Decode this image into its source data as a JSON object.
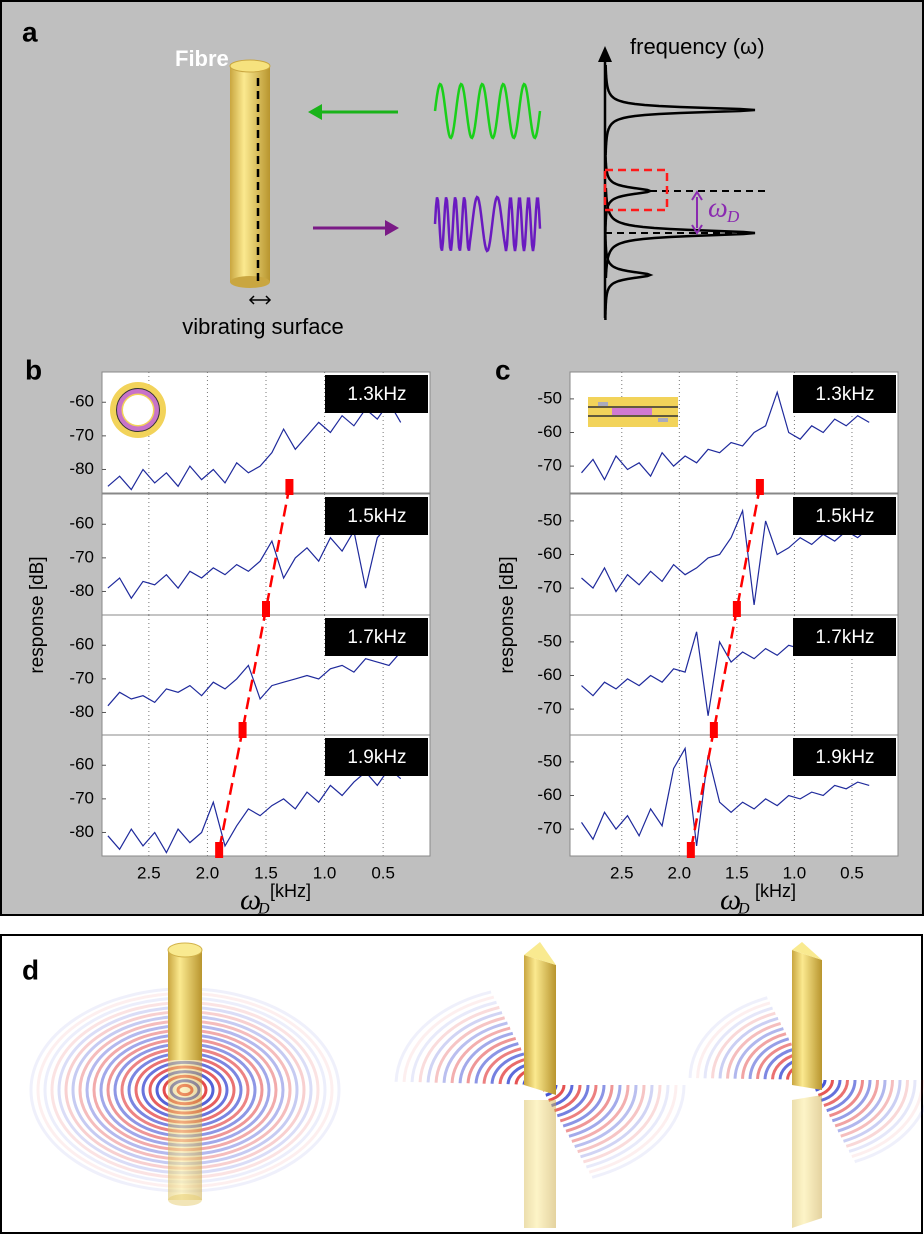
{
  "panels": {
    "a": {
      "label": "a",
      "fibre": "Fibre",
      "surface": "vibrating surface",
      "freq_axis": "frequency (ω)",
      "shift": "ω",
      "shift_sub": "D"
    },
    "b": {
      "label": "b",
      "ylabel": "response [dB]",
      "xlabel": "ω",
      "xlabel_sub": "D",
      "xlabel_unit": "[kHz]"
    },
    "c": {
      "label": "c",
      "ylabel": "response [dB]",
      "xlabel": "ω",
      "xlabel_sub": "D",
      "xlabel_unit": "[kHz]"
    },
    "d": {
      "label": "d"
    }
  },
  "chart_data": [
    {
      "type": "line",
      "title": "1.3kHz",
      "color": "#1f2a9c",
      "marker_x": 1.3,
      "marker_color": "#ff0000",
      "x": [
        2.85,
        2.75,
        2.65,
        2.55,
        2.45,
        2.35,
        2.25,
        2.15,
        2.05,
        1.95,
        1.85,
        1.75,
        1.65,
        1.55,
        1.45,
        1.35,
        1.25,
        1.15,
        1.05,
        0.95,
        0.85,
        0.75,
        0.65,
        0.55,
        0.45,
        0.35
      ],
      "values": [
        -85,
        -82,
        -86,
        -80,
        -84,
        -81,
        -85,
        -79,
        -83,
        -80,
        -84,
        -78,
        -81,
        -79,
        -75,
        -68,
        -74,
        -70,
        -66,
        -69,
        -64,
        -67,
        -62,
        -65,
        -60,
        -66
      ],
      "xlim": [
        2.9,
        0.1
      ],
      "xticks": [
        2.5,
        {
          "value": 2,
          "label": "2.0"
        },
        1.5,
        {
          "value": 1,
          "label": "1.0"
        },
        0.5
      ],
      "ylim": [
        -87,
        -51
      ],
      "yticks": [
        -60,
        -70,
        -80
      ],
      "grid": true
    },
    {
      "type": "line",
      "title": "1.5kHz",
      "color": "#1f2a9c",
      "marker_x": 1.5,
      "marker_color": "#ff0000",
      "x": [
        2.85,
        2.75,
        2.65,
        2.55,
        2.45,
        2.35,
        2.25,
        2.15,
        2.05,
        1.95,
        1.85,
        1.75,
        1.65,
        1.55,
        1.45,
        1.35,
        1.25,
        1.15,
        1.05,
        0.95,
        0.85,
        0.75,
        0.65,
        0.55,
        0.45,
        0.35
      ],
      "values": [
        -79,
        -76,
        -82,
        -77,
        -78,
        -75,
        -79,
        -74,
        -76,
        -73,
        -75,
        -72,
        -74,
        -71,
        -65,
        -76,
        -70,
        -67,
        -71,
        -64,
        -68,
        -62,
        -79,
        -64,
        -60,
        -63
      ],
      "xlim": [
        2.9,
        0.1
      ],
      "xticks": [
        2.5,
        {
          "value": 2,
          "label": "2.0"
        },
        1.5,
        {
          "value": 1,
          "label": "1.0"
        },
        0.5
      ],
      "ylim": [
        -87,
        -51
      ],
      "yticks": [
        -60,
        -70,
        -80
      ],
      "grid": true
    },
    {
      "type": "line",
      "title": "1.7kHz",
      "color": "#1f2a9c",
      "marker_x": 1.7,
      "marker_color": "#ff0000",
      "x": [
        2.85,
        2.75,
        2.65,
        2.55,
        2.45,
        2.35,
        2.25,
        2.15,
        2.05,
        1.95,
        1.85,
        1.75,
        1.65,
        1.55,
        1.45,
        1.35,
        1.25,
        1.15,
        1.05,
        0.95,
        0.85,
        0.75,
        0.65,
        0.55,
        0.45,
        0.35
      ],
      "values": [
        -78,
        -74,
        -76,
        -75,
        -77,
        -73,
        -74,
        -72,
        -75,
        -71,
        -73,
        -70,
        -66,
        -76,
        -72,
        -71,
        -70,
        -69,
        -70,
        -67,
        -66,
        -68,
        -64,
        -65,
        -66,
        -62
      ],
      "xlim": [
        2.9,
        0.1
      ],
      "xticks": [
        2.5,
        {
          "value": 2,
          "label": "2.0"
        },
        1.5,
        {
          "value": 1,
          "label": "1.0"
        },
        0.5
      ],
      "ylim": [
        -87,
        -51
      ],
      "yticks": [
        -60,
        -70,
        -80
      ],
      "grid": true
    },
    {
      "type": "line",
      "title": "1.9kHz",
      "color": "#1f2a9c",
      "marker_x": 1.9,
      "marker_color": "#ff0000",
      "x": [
        2.85,
        2.75,
        2.65,
        2.55,
        2.45,
        2.35,
        2.25,
        2.15,
        2.05,
        1.95,
        1.85,
        1.75,
        1.65,
        1.55,
        1.45,
        1.35,
        1.25,
        1.15,
        1.05,
        0.95,
        0.85,
        0.75,
        0.65,
        0.55,
        0.45,
        0.35
      ],
      "values": [
        -81,
        -85,
        -79,
        -84,
        -80,
        -86,
        -79,
        -83,
        -80,
        -71,
        -84,
        -78,
        -73,
        -75,
        -72,
        -70,
        -73,
        -68,
        -71,
        -66,
        -69,
        -65,
        -62,
        -66,
        -61,
        -64
      ],
      "xlim": [
        2.9,
        0.1
      ],
      "xticks": [
        2.5,
        {
          "value": 2,
          "label": "2.0"
        },
        1.5,
        {
          "value": 1,
          "label": "1.0"
        },
        0.5
      ],
      "ylim": [
        -87,
        -51
      ],
      "yticks": [
        -60,
        -70,
        -80
      ],
      "grid": true
    },
    {
      "type": "line",
      "title": "1.3kHz",
      "color": "#1f2a9c",
      "marker_x": 1.3,
      "marker_color": "#ff0000",
      "x": [
        2.85,
        2.75,
        2.65,
        2.55,
        2.45,
        2.35,
        2.25,
        2.15,
        2.05,
        1.95,
        1.85,
        1.75,
        1.65,
        1.55,
        1.45,
        1.35,
        1.25,
        1.15,
        1.05,
        0.95,
        0.85,
        0.75,
        0.65,
        0.55,
        0.45,
        0.35
      ],
      "values": [
        -72,
        -68,
        -74,
        -67,
        -71,
        -69,
        -73,
        -66,
        -70,
        -67,
        -69,
        -65,
        -66,
        -63,
        -64,
        -60,
        -58,
        -48,
        -60,
        -62,
        -58,
        -60,
        -56,
        -58,
        -55,
        -57
      ],
      "xlim": [
        2.95,
        0.1
      ],
      "xticks": [
        2.5,
        {
          "value": 2,
          "label": "2.0"
        },
        1.5,
        {
          "value": 1,
          "label": "1.0"
        },
        0.5
      ],
      "ylim": [
        -78,
        -42
      ],
      "yticks": [
        -50,
        -60,
        -70
      ],
      "grid": true
    },
    {
      "type": "line",
      "title": "1.5kHz",
      "color": "#1f2a9c",
      "marker_x": 1.5,
      "marker_color": "#ff0000",
      "x": [
        2.85,
        2.75,
        2.65,
        2.55,
        2.45,
        2.35,
        2.25,
        2.15,
        2.05,
        1.95,
        1.85,
        1.75,
        1.65,
        1.55,
        1.45,
        1.35,
        1.25,
        1.15,
        1.05,
        0.95,
        0.85,
        0.75,
        0.65,
        0.55,
        0.45,
        0.35
      ],
      "values": [
        -67,
        -70,
        -64,
        -71,
        -66,
        -69,
        -65,
        -68,
        -63,
        -66,
        -64,
        -61,
        -60,
        -55,
        -47,
        -75,
        -50,
        -60,
        -58,
        -55,
        -57,
        -54,
        -56,
        -53,
        -55,
        -52
      ],
      "xlim": [
        2.95,
        0.1
      ],
      "xticks": [
        2.5,
        {
          "value": 2,
          "label": "2.0"
        },
        1.5,
        {
          "value": 1,
          "label": "1.0"
        },
        0.5
      ],
      "ylim": [
        -78,
        -42
      ],
      "yticks": [
        -50,
        -60,
        -70
      ],
      "grid": true
    },
    {
      "type": "line",
      "title": "1.7kHz",
      "color": "#1f2a9c",
      "marker_x": 1.7,
      "marker_color": "#ff0000",
      "x": [
        2.85,
        2.75,
        2.65,
        2.55,
        2.45,
        2.35,
        2.25,
        2.15,
        2.05,
        1.95,
        1.85,
        1.75,
        1.65,
        1.55,
        1.45,
        1.35,
        1.25,
        1.15,
        1.05,
        0.95,
        0.85,
        0.75,
        0.65,
        0.55,
        0.45,
        0.35
      ],
      "values": [
        -63,
        -66,
        -62,
        -64,
        -61,
        -63,
        -60,
        -62,
        -58,
        -59,
        -47,
        -72,
        -50,
        -56,
        -53,
        -55,
        -52,
        -54,
        -51,
        -52,
        -50,
        -51,
        -49,
        -50,
        -48,
        -49
      ],
      "xlim": [
        2.95,
        0.1
      ],
      "xticks": [
        2.5,
        {
          "value": 2,
          "label": "2.0"
        },
        1.5,
        {
          "value": 1,
          "label": "1.0"
        },
        0.5
      ],
      "ylim": [
        -78,
        -42
      ],
      "yticks": [
        -50,
        -60,
        -70
      ],
      "grid": true
    },
    {
      "type": "line",
      "title": "1.9kHz",
      "color": "#1f2a9c",
      "marker_x": 1.9,
      "marker_color": "#ff0000",
      "x": [
        2.85,
        2.75,
        2.65,
        2.55,
        2.45,
        2.35,
        2.25,
        2.15,
        2.05,
        1.95,
        1.85,
        1.75,
        1.65,
        1.55,
        1.45,
        1.35,
        1.25,
        1.15,
        1.05,
        0.95,
        0.85,
        0.75,
        0.65,
        0.55,
        0.45,
        0.35
      ],
      "values": [
        -68,
        -73,
        -65,
        -70,
        -66,
        -72,
        -64,
        -69,
        -52,
        -46,
        -75,
        -48,
        -62,
        -65,
        -62,
        -64,
        -61,
        -63,
        -60,
        -61,
        -59,
        -60,
        -57,
        -58,
        -56,
        -57
      ],
      "xlim": [
        2.95,
        0.1
      ],
      "xticks": [
        2.5,
        {
          "value": 2,
          "label": "2.0"
        },
        1.5,
        {
          "value": 1,
          "label": "1.0"
        },
        0.5
      ],
      "ylim": [
        -78,
        -42
      ],
      "yticks": [
        -50,
        -60,
        -70
      ],
      "grid": true
    }
  ]
}
